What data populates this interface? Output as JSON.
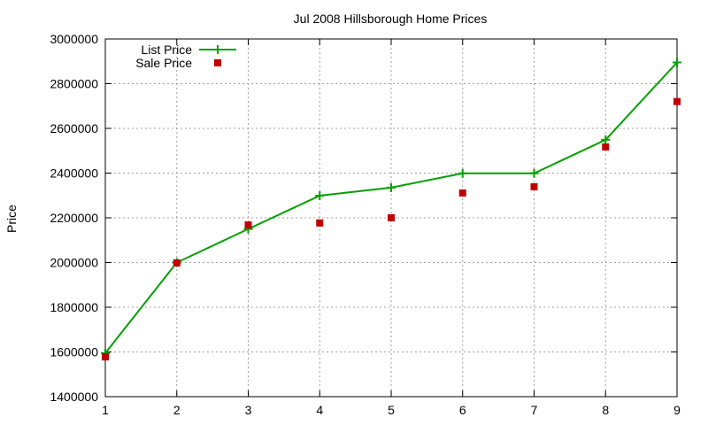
{
  "chart_data": {
    "type": "line",
    "title": "Jul 2008 Hillsborough Home Prices",
    "xlabel": "",
    "ylabel": "Price",
    "xlim": [
      1,
      9
    ],
    "ylim": [
      1400000,
      3000000
    ],
    "x_ticks": [
      1,
      2,
      3,
      4,
      5,
      6,
      7,
      8,
      9
    ],
    "y_ticks": [
      1400000,
      1600000,
      1800000,
      2000000,
      2200000,
      2400000,
      2600000,
      2800000,
      3000000
    ],
    "grid": true,
    "legend_position": "top-left",
    "series": [
      {
        "name": "List Price",
        "style": "linespoints",
        "marker": "plus",
        "color": "#00a000",
        "x": [
          1,
          2,
          3,
          4,
          5,
          6,
          7,
          8,
          9
        ],
        "values": [
          1595000,
          2000000,
          2150000,
          2299000,
          2335000,
          2399000,
          2399000,
          2549000,
          2895000
        ]
      },
      {
        "name": "Sale Price",
        "style": "points",
        "marker": "square",
        "color": "#c00000",
        "x": [
          1,
          2,
          3,
          4,
          5,
          6,
          7,
          8,
          9
        ],
        "values": [
          1578000,
          1998000,
          2168000,
          2177000,
          2200000,
          2311000,
          2339000,
          2517000,
          2720000
        ]
      }
    ]
  }
}
